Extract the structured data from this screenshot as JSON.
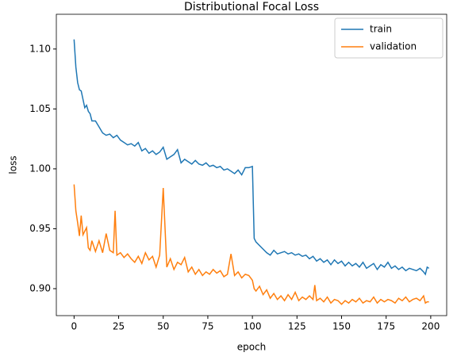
{
  "chart_data": {
    "type": "line",
    "title": "Distributional Focal Loss",
    "xlabel": "epoch",
    "ylabel": "loss",
    "x": [
      0,
      1,
      2,
      3,
      4,
      5,
      6,
      7,
      8,
      9,
      10,
      12,
      14,
      16,
      18,
      20,
      22,
      23,
      24,
      26,
      28,
      30,
      32,
      34,
      36,
      38,
      40,
      42,
      44,
      46,
      48,
      50,
      52,
      54,
      56,
      58,
      60,
      62,
      64,
      66,
      68,
      70,
      72,
      74,
      76,
      78,
      80,
      82,
      84,
      86,
      88,
      90,
      92,
      94,
      96,
      98,
      100,
      101,
      102,
      104,
      106,
      108,
      110,
      112,
      114,
      116,
      118,
      120,
      122,
      124,
      126,
      128,
      130,
      132,
      134,
      135,
      136,
      138,
      140,
      142,
      144,
      146,
      148,
      150,
      152,
      154,
      156,
      158,
      160,
      162,
      164,
      166,
      168,
      170,
      172,
      174,
      176,
      178,
      180,
      182,
      184,
      186,
      188,
      190,
      192,
      194,
      196,
      197,
      198,
      199
    ],
    "series": [
      {
        "name": "train",
        "color": "#1f77b4",
        "values": [
          1.108,
          1.085,
          1.072,
          1.066,
          1.065,
          1.058,
          1.051,
          1.053,
          1.048,
          1.046,
          1.04,
          1.04,
          1.035,
          1.03,
          1.028,
          1.029,
          1.026,
          1.027,
          1.028,
          1.024,
          1.022,
          1.02,
          1.021,
          1.019,
          1.022,
          1.015,
          1.017,
          1.013,
          1.015,
          1.012,
          1.014,
          1.018,
          1.008,
          1.01,
          1.012,
          1.016,
          1.005,
          1.008,
          1.006,
          1.004,
          1.007,
          1.004,
          1.003,
          1.005,
          1.002,
          1.003,
          1.001,
          1.002,
          0.999,
          1.0,
          0.998,
          0.996,
          0.999,
          0.995,
          1.001,
          1.001,
          1.002,
          0.942,
          0.939,
          0.936,
          0.933,
          0.93,
          0.928,
          0.932,
          0.929,
          0.93,
          0.931,
          0.929,
          0.93,
          0.928,
          0.929,
          0.927,
          0.928,
          0.925,
          0.927,
          0.925,
          0.923,
          0.925,
          0.922,
          0.924,
          0.92,
          0.924,
          0.921,
          0.923,
          0.919,
          0.922,
          0.919,
          0.921,
          0.918,
          0.922,
          0.917,
          0.919,
          0.921,
          0.916,
          0.92,
          0.918,
          0.922,
          0.917,
          0.919,
          0.916,
          0.918,
          0.915,
          0.917,
          0.916,
          0.915,
          0.917,
          0.914,
          0.912,
          0.918,
          0.917
        ]
      },
      {
        "name": "validation",
        "color": "#ff7f0e",
        "values": [
          0.987,
          0.965,
          0.955,
          0.944,
          0.961,
          0.945,
          0.948,
          0.951,
          0.934,
          0.932,
          0.94,
          0.931,
          0.94,
          0.93,
          0.946,
          0.932,
          0.93,
          0.965,
          0.928,
          0.93,
          0.926,
          0.929,
          0.925,
          0.922,
          0.927,
          0.921,
          0.93,
          0.924,
          0.927,
          0.918,
          0.928,
          0.984,
          0.918,
          0.925,
          0.916,
          0.922,
          0.92,
          0.926,
          0.914,
          0.918,
          0.912,
          0.916,
          0.911,
          0.914,
          0.912,
          0.916,
          0.913,
          0.915,
          0.91,
          0.912,
          0.929,
          0.911,
          0.914,
          0.909,
          0.912,
          0.911,
          0.907,
          0.9,
          0.898,
          0.902,
          0.895,
          0.899,
          0.892,
          0.896,
          0.891,
          0.894,
          0.89,
          0.895,
          0.891,
          0.897,
          0.89,
          0.893,
          0.891,
          0.894,
          0.891,
          0.903,
          0.89,
          0.892,
          0.889,
          0.893,
          0.888,
          0.891,
          0.89,
          0.887,
          0.89,
          0.888,
          0.891,
          0.889,
          0.892,
          0.888,
          0.89,
          0.889,
          0.893,
          0.888,
          0.891,
          0.889,
          0.891,
          0.89,
          0.888,
          0.892,
          0.89,
          0.893,
          0.889,
          0.891,
          0.892,
          0.89,
          0.894,
          0.888,
          0.889,
          0.889
        ]
      }
    ],
    "xlim": [
      -9.95,
      208.95
    ],
    "ylim": [
      0.8775,
      1.129
    ],
    "xticks": [
      0,
      25,
      50,
      75,
      100,
      125,
      150,
      175,
      200
    ],
    "yticks": [
      {
        "value": 0.9,
        "label": "0.90"
      },
      0.95,
      {
        "value": 1.0,
        "label": "1.00"
      },
      1.05,
      {
        "value": 1.1,
        "label": "1.10"
      }
    ],
    "legend": "upper right"
  }
}
